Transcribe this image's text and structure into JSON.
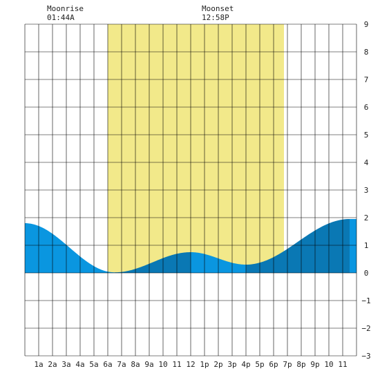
{
  "colors": {
    "background": "#ffffff",
    "daylight": "#f2e98a",
    "tide_light": "#0a96e0",
    "tide_dark": "#0a78b4",
    "grid": "#000000"
  },
  "moon": {
    "moonrise_label": "Moonrise",
    "moonrise_time": "01:44A",
    "moonset_label": "Moonset",
    "moonset_time": "12:58P"
  },
  "chart_data": {
    "type": "area",
    "title": "",
    "xlabel": "",
    "ylabel": "",
    "xlim": [
      0,
      24
    ],
    "ylim": [
      -3,
      9
    ],
    "x_ticks": [
      {
        "hour": 1,
        "label": "1a"
      },
      {
        "hour": 2,
        "label": "2a"
      },
      {
        "hour": 3,
        "label": "3a"
      },
      {
        "hour": 4,
        "label": "4a"
      },
      {
        "hour": 5,
        "label": "5a"
      },
      {
        "hour": 6,
        "label": "6a"
      },
      {
        "hour": 7,
        "label": "7a"
      },
      {
        "hour": 8,
        "label": "8a"
      },
      {
        "hour": 9,
        "label": "9a"
      },
      {
        "hour": 10,
        "label": "10"
      },
      {
        "hour": 11,
        "label": "11"
      },
      {
        "hour": 12,
        "label": "12"
      },
      {
        "hour": 13,
        "label": "1p"
      },
      {
        "hour": 14,
        "label": "2p"
      },
      {
        "hour": 15,
        "label": "3p"
      },
      {
        "hour": 16,
        "label": "4p"
      },
      {
        "hour": 17,
        "label": "5p"
      },
      {
        "hour": 18,
        "label": "6p"
      },
      {
        "hour": 19,
        "label": "7p"
      },
      {
        "hour": 20,
        "label": "8p"
      },
      {
        "hour": 21,
        "label": "9p"
      },
      {
        "hour": 22,
        "label": "10"
      },
      {
        "hour": 23,
        "label": "11"
      }
    ],
    "y_ticks": [
      -3,
      -2,
      -1,
      0,
      1,
      2,
      3,
      4,
      5,
      6,
      7,
      8,
      9
    ],
    "daylight_hours": [
      6.0,
      18.75
    ],
    "moonrise_hour": 1.73,
    "moonset_hour": 12.97,
    "tide_extremes": [
      {
        "hour": 0.0,
        "height": 1.8
      },
      {
        "hour": 6.5,
        "height": 0.02
      },
      {
        "hour": 12.0,
        "height": 0.75
      },
      {
        "hour": 16.0,
        "height": 0.3
      },
      {
        "hour": 23.5,
        "height": 1.95
      },
      {
        "hour": 24.0,
        "height": 1.95
      }
    ],
    "shade_breaks": [
      {
        "from": 0.0,
        "to": 6.5,
        "shade": "light"
      },
      {
        "from": 6.5,
        "to": 12.0,
        "shade": "dark"
      },
      {
        "from": 12.0,
        "to": 16.0,
        "shade": "light"
      },
      {
        "from": 16.0,
        "to": 23.5,
        "shade": "dark"
      },
      {
        "from": 23.5,
        "to": 24.0,
        "shade": "light"
      }
    ]
  }
}
